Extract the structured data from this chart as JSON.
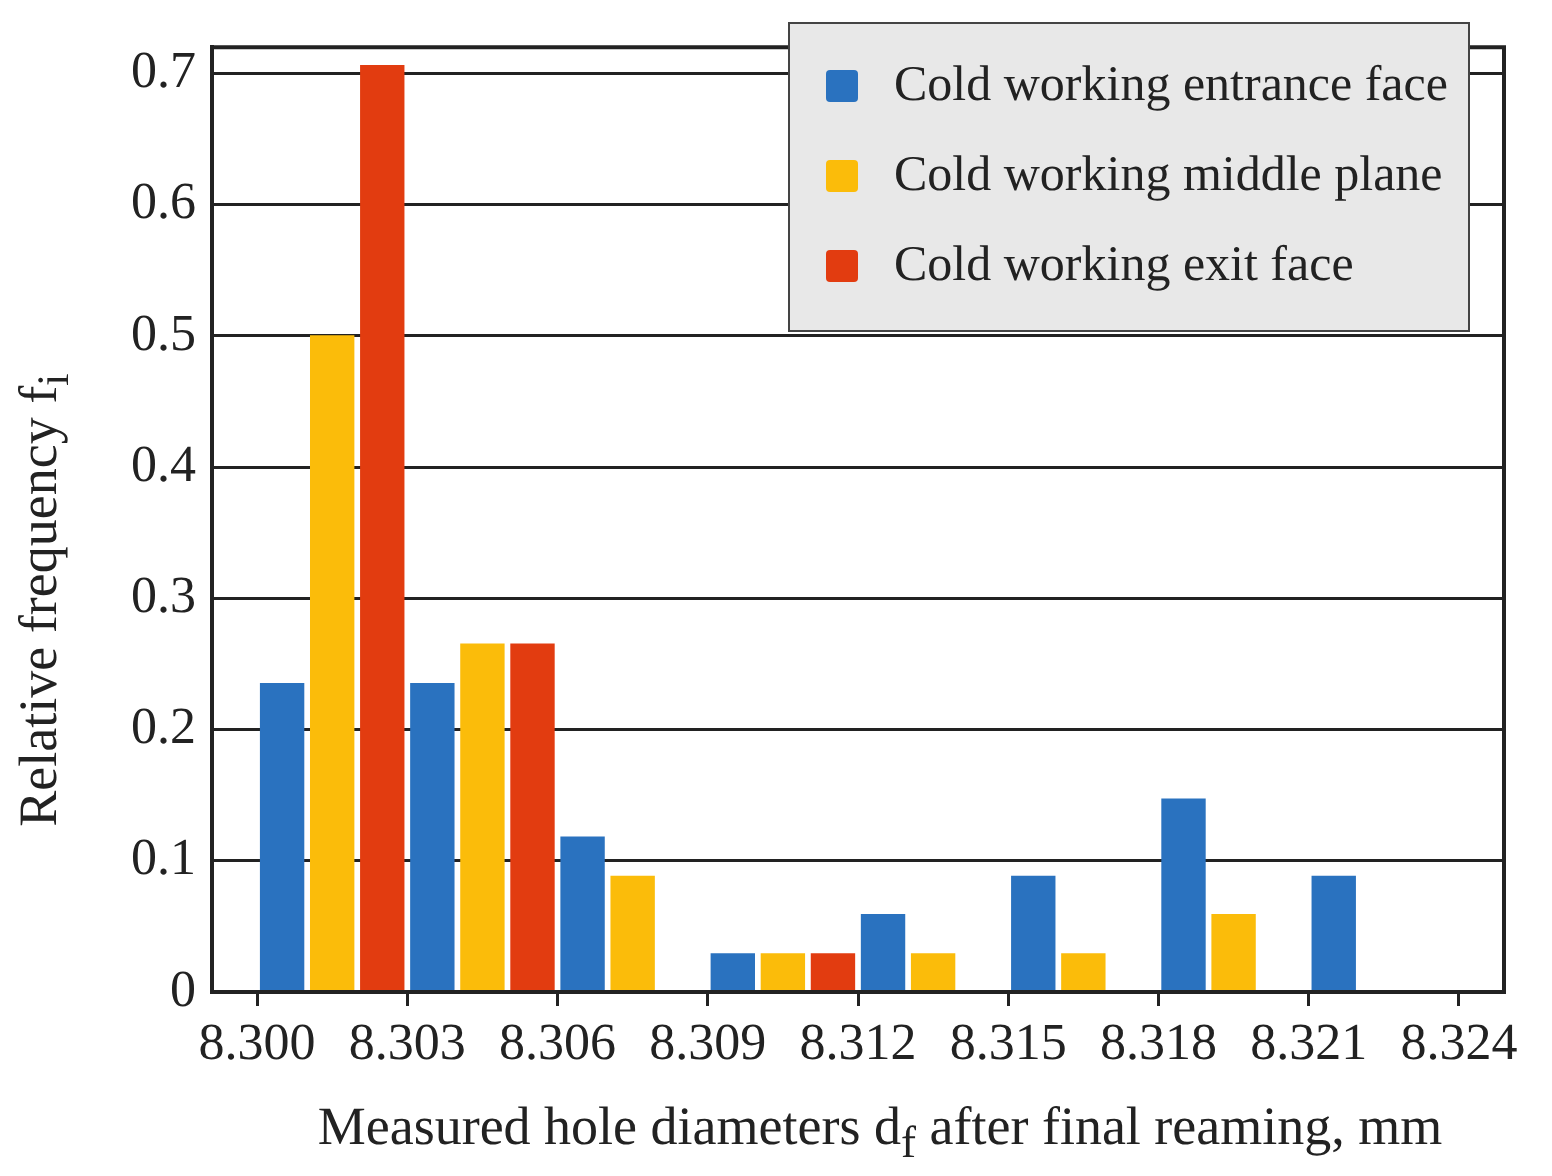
{
  "chart_data": {
    "type": "histogram",
    "xlabel": "Measured hole diameters d$_{f}$ after final reaming, mm",
    "ylabel": "Relative frequency f$_{i}$",
    "bins": [
      8.3,
      8.303,
      8.306,
      8.309,
      8.312,
      8.315,
      8.318,
      8.321,
      8.324
    ],
    "series": [
      {
        "name": "Cold working entrance face",
        "color": "#2a72bf",
        "values": [
          0.235,
          0.235,
          0.118,
          0.029,
          0.059,
          0.088,
          0.147,
          0.088
        ]
      },
      {
        "name": "Cold working middle plane",
        "color": "#fbbc0a",
        "values": [
          0.5,
          0.265,
          0.088,
          0.029,
          0.029,
          0.029,
          0.059,
          0
        ]
      },
      {
        "name": "Cold working exit face",
        "color": "#e23c10",
        "values": [
          0.706,
          0.265,
          0,
          0.029,
          0,
          0,
          0,
          0
        ]
      }
    ],
    "xlim": [
      8.2991,
      8.3249
    ],
    "xticks": [
      {
        "value": 8.3,
        "label": "8.300"
      },
      {
        "value": 8.303,
        "label": "8.303"
      },
      {
        "value": 8.306,
        "label": "8.306"
      },
      {
        "value": 8.309,
        "label": "8.309"
      },
      {
        "value": 8.312,
        "label": "8.312"
      },
      {
        "value": 8.315,
        "label": "8.315"
      },
      {
        "value": 8.318,
        "label": "8.318"
      },
      {
        "value": 8.321,
        "label": "8.321"
      },
      {
        "value": 8.324,
        "label": "8.324"
      }
    ],
    "ylim": [
      0,
      0.72
    ],
    "yticks": [
      0,
      0.1,
      0.2,
      0.3,
      0.4,
      0.5,
      0.6,
      0.7
    ],
    "grid": "y",
    "legend": "top right"
  }
}
